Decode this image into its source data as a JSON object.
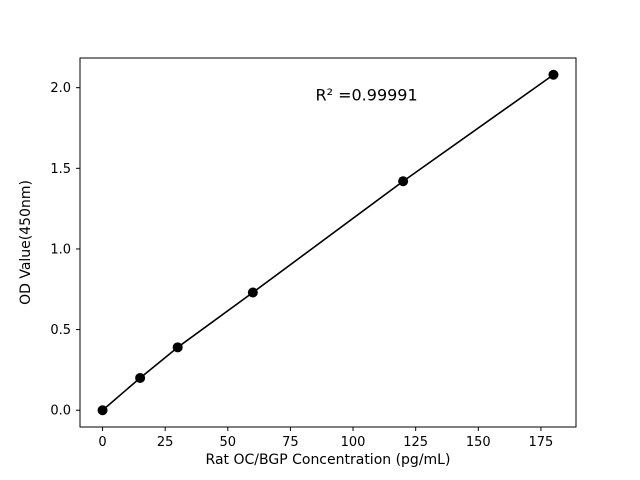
{
  "chart_data": {
    "type": "line",
    "series_name": "Standard curve",
    "x": [
      0,
      15,
      30,
      60,
      120,
      180
    ],
    "y": [
      0.0,
      0.2,
      0.39,
      0.73,
      1.42,
      2.08
    ],
    "title": "",
    "xlabel": "Rat OC/BGP Concentration (pg/mL)",
    "ylabel": "OD Value(450nm)",
    "xlim": [
      -9,
      189
    ],
    "ylim": [
      -0.104,
      2.184
    ],
    "xticks": [
      0,
      25,
      50,
      75,
      100,
      125,
      150,
      175
    ],
    "xtick_labels": [
      "0",
      "25",
      "50",
      "75",
      "100",
      "125",
      "150",
      "175"
    ],
    "yticks": [
      0.0,
      0.5,
      1.0,
      1.5,
      2.0
    ],
    "ytick_labels": [
      "0.0",
      "0.5",
      "1.0",
      "1.5",
      "2.0"
    ],
    "annotation": {
      "text": "R² =0.99991",
      "x": 85,
      "y": 1.92
    },
    "grid": false,
    "legend": null,
    "line_color": "#000000",
    "marker_color": "#000000",
    "marker": "circle",
    "background": "#ffffff"
  }
}
